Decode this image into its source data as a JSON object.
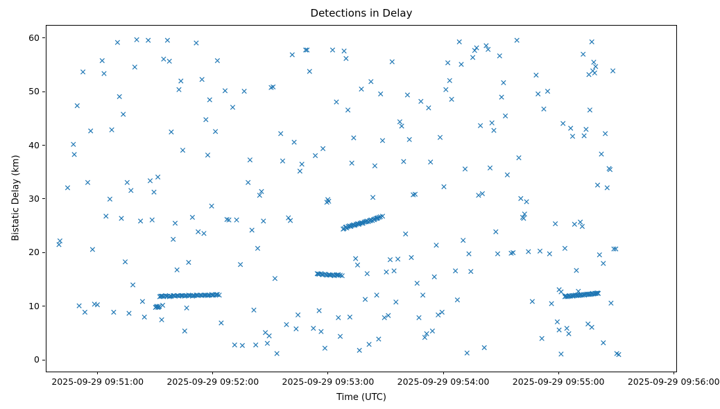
{
  "chart_data": {
    "type": "scatter",
    "title": "Detections in Delay",
    "xlabel": "Time (UTC)",
    "ylabel": "Bistatic Delay (km)",
    "marker": "x",
    "color": "#1f77b4",
    "grid": false,
    "legend": null,
    "x_unit": "seconds after 2025-09-29 09:51:00 UTC",
    "xlim": [
      -27,
      301
    ],
    "ylim": [
      -2.06,
      62.43
    ],
    "x_ticks_seconds": [
      0,
      60,
      120,
      180,
      240,
      300
    ],
    "x_tick_labels": [
      "2025-09-29 09:51:00",
      "2025-09-29 09:52:00",
      "2025-09-29 09:53:00",
      "2025-09-29 09:54:00",
      "2025-09-29 09:55:00",
      "2025-09-29 09:56:00"
    ],
    "y_ticks": [
      0,
      10,
      20,
      30,
      40,
      50,
      60
    ],
    "y_tick_labels": [
      "0",
      "10",
      "20",
      "30",
      "40",
      "50",
      "60"
    ],
    "points": [
      [
        -20,
        22.3
      ],
      [
        -20.5,
        21.6
      ],
      [
        -16,
        32.2
      ],
      [
        -13,
        40.3
      ],
      [
        -12.5,
        38.4
      ],
      [
        -11,
        47.5
      ],
      [
        -10,
        10.2
      ],
      [
        -8,
        53.8
      ],
      [
        -7,
        9.0
      ],
      [
        -5.5,
        33.2
      ],
      [
        -4,
        42.8
      ],
      [
        -3,
        20.7
      ],
      [
        -2,
        10.5
      ],
      [
        -0.5,
        10.4
      ],
      [
        2,
        55.9
      ],
      [
        3,
        53.5
      ],
      [
        4,
        26.9
      ],
      [
        6,
        30.1
      ],
      [
        7,
        43.0
      ],
      [
        8,
        9.0
      ],
      [
        10,
        59.3
      ],
      [
        11,
        49.2
      ],
      [
        12,
        26.5
      ],
      [
        13,
        45.9
      ],
      [
        14,
        18.4
      ],
      [
        15,
        33.2
      ],
      [
        16,
        8.8
      ],
      [
        17,
        31.7
      ],
      [
        18,
        14.1
      ],
      [
        19,
        54.7
      ],
      [
        20,
        59.8
      ],
      [
        22,
        26.0
      ],
      [
        23,
        11.0
      ],
      [
        24,
        8.1
      ],
      [
        26,
        59.7
      ],
      [
        27,
        33.5
      ],
      [
        28,
        26.2
      ],
      [
        29,
        31.4
      ],
      [
        31,
        34.2
      ],
      [
        33,
        7.6
      ],
      [
        34,
        56.2
      ],
      [
        36,
        59.7
      ],
      [
        37,
        55.8
      ],
      [
        38,
        42.6
      ],
      [
        39,
        22.6
      ],
      [
        40,
        25.6
      ],
      [
        41,
        16.9
      ],
      [
        42,
        50.5
      ],
      [
        43,
        52.1
      ],
      [
        44,
        39.2
      ],
      [
        45,
        5.5
      ],
      [
        46,
        9.8
      ],
      [
        47,
        18.3
      ],
      [
        49,
        26.7
      ],
      [
        51,
        59.2
      ],
      [
        52,
        24.0
      ],
      [
        54,
        52.4
      ],
      [
        55,
        23.7
      ],
      [
        56,
        44.9
      ],
      [
        57,
        38.3
      ],
      [
        58,
        48.6
      ],
      [
        59,
        28.8
      ],
      [
        61,
        42.7
      ],
      [
        62,
        55.9
      ],
      [
        64,
        7.0
      ],
      [
        66,
        50.3
      ],
      [
        67,
        26.3
      ],
      [
        68,
        26.2
      ],
      [
        70,
        47.2
      ],
      [
        71,
        2.9
      ],
      [
        72,
        26.2
      ],
      [
        74,
        17.9
      ],
      [
        75,
        2.8
      ],
      [
        76,
        50.2
      ],
      [
        78,
        33.2
      ],
      [
        79,
        37.4
      ],
      [
        80,
        24.3
      ],
      [
        81,
        9.4
      ],
      [
        82,
        2.9
      ],
      [
        83,
        20.9
      ],
      [
        84,
        30.8
      ],
      [
        85,
        31.5
      ],
      [
        86,
        26.0
      ],
      [
        87,
        5.2
      ],
      [
        88,
        3.2
      ],
      [
        89,
        4.6
      ],
      [
        90,
        50.9
      ],
      [
        91,
        51.0
      ],
      [
        92,
        15.3
      ],
      [
        93,
        1.3
      ],
      [
        95,
        42.3
      ],
      [
        96,
        37.2
      ],
      [
        98,
        6.7
      ],
      [
        99,
        26.6
      ],
      [
        100,
        26.1
      ],
      [
        101,
        57.0
      ],
      [
        102,
        40.7
      ],
      [
        103,
        5.9
      ],
      [
        104,
        8.5
      ],
      [
        105,
        35.3
      ],
      [
        106,
        36.6
      ],
      [
        108,
        57.9
      ],
      [
        108.7,
        57.9
      ],
      [
        110,
        53.9
      ],
      [
        112,
        6.0
      ],
      [
        113,
        38.2
      ],
      [
        115,
        9.3
      ],
      [
        116,
        5.4
      ],
      [
        117,
        39.5
      ],
      [
        118,
        2.3
      ],
      [
        119,
        29.5
      ],
      [
        119.5,
        30.0
      ],
      [
        120,
        29.7
      ],
      [
        122,
        57.9
      ],
      [
        124,
        48.2
      ],
      [
        125,
        8.0
      ],
      [
        126,
        4.5
      ],
      [
        128,
        57.7
      ],
      [
        129,
        56.3
      ],
      [
        130,
        46.7
      ],
      [
        131,
        8.1
      ],
      [
        132,
        36.8
      ],
      [
        133,
        41.5
      ],
      [
        134,
        19.0
      ],
      [
        135,
        17.8
      ],
      [
        136,
        1.9
      ],
      [
        137,
        50.6
      ],
      [
        139,
        11.4
      ],
      [
        140,
        16.2
      ],
      [
        141,
        3.0
      ],
      [
        142,
        52.0
      ],
      [
        143,
        30.4
      ],
      [
        144,
        36.3
      ],
      [
        145,
        12.2
      ],
      [
        146,
        4.0
      ],
      [
        147,
        49.7
      ],
      [
        148,
        41.0
      ],
      [
        149,
        8.0
      ],
      [
        150,
        16.5
      ],
      [
        151,
        8.4
      ],
      [
        152,
        18.8
      ],
      [
        153,
        55.7
      ],
      [
        154,
        16.7
      ],
      [
        155,
        10.9
      ],
      [
        156,
        18.9
      ],
      [
        157,
        44.5
      ],
      [
        158,
        43.7
      ],
      [
        159,
        37.1
      ],
      [
        160,
        23.6
      ],
      [
        161,
        49.5
      ],
      [
        162,
        41.2
      ],
      [
        163,
        19.2
      ],
      [
        164,
        30.9
      ],
      [
        165,
        31.0
      ],
      [
        166,
        14.4
      ],
      [
        167,
        8.0
      ],
      [
        168,
        48.3
      ],
      [
        169,
        12.2
      ],
      [
        170,
        4.3
      ],
      [
        171,
        5.0
      ],
      [
        172,
        47.1
      ],
      [
        173,
        37.0
      ],
      [
        174,
        5.5
      ],
      [
        175,
        15.6
      ],
      [
        176,
        21.5
      ],
      [
        177,
        8.5
      ],
      [
        178,
        41.6
      ],
      [
        179,
        9.0
      ],
      [
        180,
        32.4
      ],
      [
        181,
        50.5
      ],
      [
        182,
        55.5
      ],
      [
        183,
        52.2
      ],
      [
        184,
        48.7
      ],
      [
        186,
        16.7
      ],
      [
        187,
        11.3
      ],
      [
        188,
        59.4
      ],
      [
        189,
        55.2
      ],
      [
        190,
        22.4
      ],
      [
        191,
        35.7
      ],
      [
        192,
        1.4
      ],
      [
        193,
        19.9
      ],
      [
        194,
        16.6
      ],
      [
        195,
        56.5
      ],
      [
        196,
        57.8
      ],
      [
        197,
        58.3
      ],
      [
        198,
        30.8
      ],
      [
        199,
        43.8
      ],
      [
        200,
        31.1
      ],
      [
        201,
        2.4
      ],
      [
        202,
        58.7
      ],
      [
        203,
        58.0
      ],
      [
        204,
        35.9
      ],
      [
        205,
        44.3
      ],
      [
        206,
        42.9
      ],
      [
        207,
        24.0
      ],
      [
        208,
        19.9
      ],
      [
        209,
        56.8
      ],
      [
        210,
        49.1
      ],
      [
        211,
        51.8
      ],
      [
        212,
        45.6
      ],
      [
        213,
        34.6
      ],
      [
        215,
        20.0
      ],
      [
        216,
        20.1
      ],
      [
        218,
        59.7
      ],
      [
        219,
        37.8
      ],
      [
        220,
        30.2
      ],
      [
        221,
        26.7
      ],
      [
        221.5,
        26.5
      ],
      [
        222,
        27.3
      ],
      [
        223,
        29.6
      ],
      [
        224,
        20.3
      ],
      [
        226,
        11.0
      ],
      [
        228,
        53.2
      ],
      [
        229,
        49.7
      ],
      [
        230,
        20.4
      ],
      [
        231,
        4.1
      ],
      [
        232,
        46.9
      ],
      [
        234,
        50.2
      ],
      [
        235,
        19.9
      ],
      [
        236,
        10.6
      ],
      [
        238,
        25.5
      ],
      [
        239,
        7.2
      ],
      [
        240,
        5.7
      ],
      [
        241,
        1.2
      ],
      [
        242,
        44.2
      ],
      [
        243,
        20.9
      ],
      [
        244,
        6.0
      ],
      [
        245,
        5.0
      ],
      [
        246,
        43.3
      ],
      [
        247,
        41.8
      ],
      [
        248,
        25.4
      ],
      [
        249,
        16.8
      ],
      [
        250,
        12.9
      ],
      [
        251,
        25.8
      ],
      [
        252,
        25.0
      ],
      [
        253,
        41.9
      ],
      [
        254,
        43.1
      ],
      [
        255,
        6.8
      ],
      [
        256,
        46.7
      ],
      [
        257,
        6.2
      ],
      [
        252.5,
        57.1
      ],
      [
        258,
        55.6
      ],
      [
        259,
        54.8
      ],
      [
        260,
        32.7
      ],
      [
        261,
        19.7
      ],
      [
        262,
        38.5
      ],
      [
        263,
        3.3
      ],
      [
        255.5,
        53.3
      ],
      [
        257.5,
        54.0
      ],
      [
        258.5,
        53.6
      ],
      [
        264,
        42.3
      ],
      [
        265,
        32.2
      ],
      [
        266,
        35.8
      ],
      [
        266.5,
        35.6
      ],
      [
        267,
        10.7
      ],
      [
        257,
        59.4
      ],
      [
        263,
        18.1
      ],
      [
        268,
        54.0
      ],
      [
        268.5,
        20.8
      ],
      [
        269.5,
        20.8
      ],
      [
        270,
        1.3
      ],
      [
        271,
        1.1
      ],
      [
        29.8,
        9.9
      ],
      [
        30.2,
        10.0
      ],
      [
        30.6,
        10.1
      ],
      [
        31,
        9.9
      ],
      [
        31.4,
        10.0
      ],
      [
        31.8,
        10.1
      ],
      [
        33.5,
        10.3
      ],
      [
        32,
        11.9
      ],
      [
        33,
        12.0
      ],
      [
        34,
        11.9
      ],
      [
        35,
        12.1
      ],
      [
        36,
        12.0
      ],
      [
        37,
        11.9
      ],
      [
        38,
        12.0
      ],
      [
        39,
        12.1
      ],
      [
        40,
        12.0
      ],
      [
        41,
        12.1
      ],
      [
        42,
        12.0
      ],
      [
        43,
        12.1
      ],
      [
        44,
        12.1
      ],
      [
        45,
        12.0
      ],
      [
        46,
        12.1
      ],
      [
        47,
        12.2
      ],
      [
        48,
        12.1
      ],
      [
        49,
        12.0
      ],
      [
        50,
        12.1
      ],
      [
        51,
        12.2
      ],
      [
        52,
        12.1
      ],
      [
        53,
        12.2
      ],
      [
        54,
        12.1
      ],
      [
        55,
        12.2
      ],
      [
        56,
        12.2
      ],
      [
        57,
        12.1
      ],
      [
        58,
        12.2
      ],
      [
        59,
        12.3
      ],
      [
        60,
        12.2
      ],
      [
        61,
        12.2
      ],
      [
        62,
        12.3
      ],
      [
        63,
        12.2
      ],
      [
        32.5,
        12.0
      ],
      [
        33.5,
        12.0
      ],
      [
        35.5,
        12.0
      ],
      [
        37.5,
        12.0
      ],
      [
        39.5,
        12.1
      ],
      [
        41.5,
        12.1
      ],
      [
        43.5,
        12.1
      ],
      [
        45.5,
        12.1
      ],
      [
        47.5,
        12.1
      ],
      [
        49.5,
        12.1
      ],
      [
        51.5,
        12.2
      ],
      [
        53.5,
        12.2
      ],
      [
        55.5,
        12.2
      ],
      [
        57.5,
        12.2
      ],
      [
        59.5,
        12.2
      ],
      [
        61.5,
        12.3
      ],
      [
        114,
        16.2
      ],
      [
        115,
        16.1
      ],
      [
        116,
        16.2
      ],
      [
        117,
        16.0
      ],
      [
        118,
        16.1
      ],
      [
        119,
        15.9
      ],
      [
        120,
        16.0
      ],
      [
        121,
        15.9
      ],
      [
        122,
        16.0
      ],
      [
        123,
        15.8
      ],
      [
        124,
        15.9
      ],
      [
        125,
        16.0
      ],
      [
        126,
        15.9
      ],
      [
        127,
        15.8
      ],
      [
        114.5,
        16.15
      ],
      [
        116.5,
        16.05
      ],
      [
        118.5,
        16.0
      ],
      [
        120.5,
        15.95
      ],
      [
        122.5,
        15.9
      ],
      [
        124.5,
        15.95
      ],
      [
        128,
        24.6
      ],
      [
        128.7,
        24.8
      ],
      [
        129.4,
        24.7
      ],
      [
        130.1,
        25.0
      ],
      [
        130.8,
        25.1
      ],
      [
        131.5,
        25.0
      ],
      [
        132.2,
        25.2
      ],
      [
        132.9,
        25.3
      ],
      [
        133.6,
        25.2
      ],
      [
        134.3,
        25.4
      ],
      [
        135,
        25.5
      ],
      [
        135.7,
        25.4
      ],
      [
        136.4,
        25.6
      ],
      [
        137.1,
        25.7
      ],
      [
        137.8,
        25.6
      ],
      [
        138.5,
        25.8
      ],
      [
        139.2,
        25.9
      ],
      [
        139.9,
        26.0
      ],
      [
        140.6,
        25.9
      ],
      [
        141.3,
        26.1
      ],
      [
        142,
        26.2
      ],
      [
        142.7,
        26.1
      ],
      [
        143.4,
        26.3
      ],
      [
        144.1,
        26.4
      ],
      [
        144.8,
        26.5
      ],
      [
        145.5,
        26.6
      ],
      [
        146.2,
        26.7
      ],
      [
        146.9,
        26.8
      ],
      [
        127.5,
        24.5
      ],
      [
        148,
        26.9
      ],
      [
        129,
        24.9
      ],
      [
        131,
        25.05
      ],
      [
        133,
        25.25
      ],
      [
        135.4,
        25.45
      ],
      [
        137.4,
        25.6
      ],
      [
        139.5,
        25.85
      ],
      [
        141.6,
        26.05
      ],
      [
        143.7,
        26.25
      ],
      [
        145.2,
        26.5
      ],
      [
        243,
        11.9
      ],
      [
        243.6,
        12.0
      ],
      [
        244.2,
        11.9
      ],
      [
        244.8,
        12.0
      ],
      [
        245.4,
        12.1
      ],
      [
        246,
        12.0
      ],
      [
        246.6,
        12.1
      ],
      [
        247.2,
        12.0
      ],
      [
        247.8,
        12.1
      ],
      [
        248.4,
        12.2
      ],
      [
        249,
        12.1
      ],
      [
        249.6,
        12.2
      ],
      [
        250.2,
        12.1
      ],
      [
        250.8,
        12.2
      ],
      [
        251.4,
        12.3
      ],
      [
        252,
        12.2
      ],
      [
        252.6,
        12.3
      ],
      [
        253.2,
        12.2
      ],
      [
        253.8,
        12.3
      ],
      [
        254.4,
        12.4
      ],
      [
        255,
        12.3
      ],
      [
        255.6,
        12.4
      ],
      [
        256.2,
        12.3
      ],
      [
        256.8,
        12.4
      ],
      [
        257.4,
        12.5
      ],
      [
        258,
        12.4
      ],
      [
        258.6,
        12.5
      ],
      [
        259.2,
        12.5
      ],
      [
        259.8,
        12.6
      ],
      [
        260.4,
        12.5
      ],
      [
        243.3,
        12.0
      ],
      [
        245.1,
        12.0
      ],
      [
        247,
        12.05
      ],
      [
        249.3,
        12.15
      ],
      [
        251.1,
        12.2
      ],
      [
        253,
        12.25
      ],
      [
        255.3,
        12.35
      ],
      [
        257.1,
        12.4
      ],
      [
        259,
        12.5
      ],
      [
        260.1,
        12.55
      ],
      [
        240,
        13.2
      ],
      [
        241,
        12.8
      ]
    ]
  }
}
